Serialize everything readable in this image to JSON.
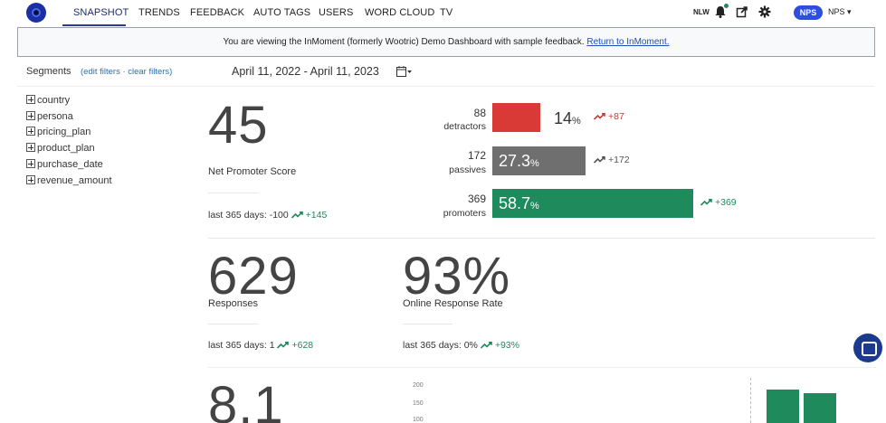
{
  "nav": {
    "tabs": [
      "SNAPSHOT",
      "TRENDS",
      "FEEDBACK",
      "AUTO TAGS",
      "USERS",
      "WORD CLOUD",
      "TV"
    ],
    "user_initials": "NLW",
    "pill": "NPS",
    "dropdown": "NPS ▾"
  },
  "banner": {
    "text": "You are viewing the InMoment (formerly Wootric) Demo Dashboard with sample feedback.",
    "link": "Return to InMoment."
  },
  "segments": {
    "title": "Segments",
    "links": "(edit filters · clear filters)",
    "items": [
      "country",
      "persona",
      "pricing_plan",
      "product_plan",
      "purchase_date",
      "revenue_amount"
    ]
  },
  "date_range": "April 11, 2022 - April 11, 2023",
  "nps": {
    "score": "45",
    "label": "Net Promoter Score",
    "last365": "last 365 days: -100",
    "last365_delta": "+145"
  },
  "breakdown": {
    "detractors": {
      "count": "88",
      "label": "detractors",
      "pct": "14",
      "delta": "+87",
      "color": "#d93a35",
      "share": 0.14
    },
    "passives": {
      "count": "172",
      "label": "passives",
      "pct": "27.3",
      "delta": "+172",
      "color": "#6f6f6f",
      "share": 0.273
    },
    "promoters": {
      "count": "369",
      "label": "promoters",
      "pct": "58.7",
      "delta": "+369",
      "color": "#1f8a5b",
      "share": 0.587
    }
  },
  "responses": {
    "value": "629",
    "label": "Responses",
    "last365": "last 365 days: 1",
    "last365_delta": "+628"
  },
  "response_rate": {
    "value": "93%",
    "label": "Online Response Rate",
    "last365": "last 365 days: 0%",
    "last365_delta": "+93%"
  },
  "score2": {
    "value": "8.1"
  },
  "chart": {
    "y_ticks": [
      "200",
      "150",
      "100"
    ]
  },
  "colors": {
    "accent": "#2d4fe0",
    "positive": "#1f8a5b",
    "negative": "#c83a35"
  }
}
